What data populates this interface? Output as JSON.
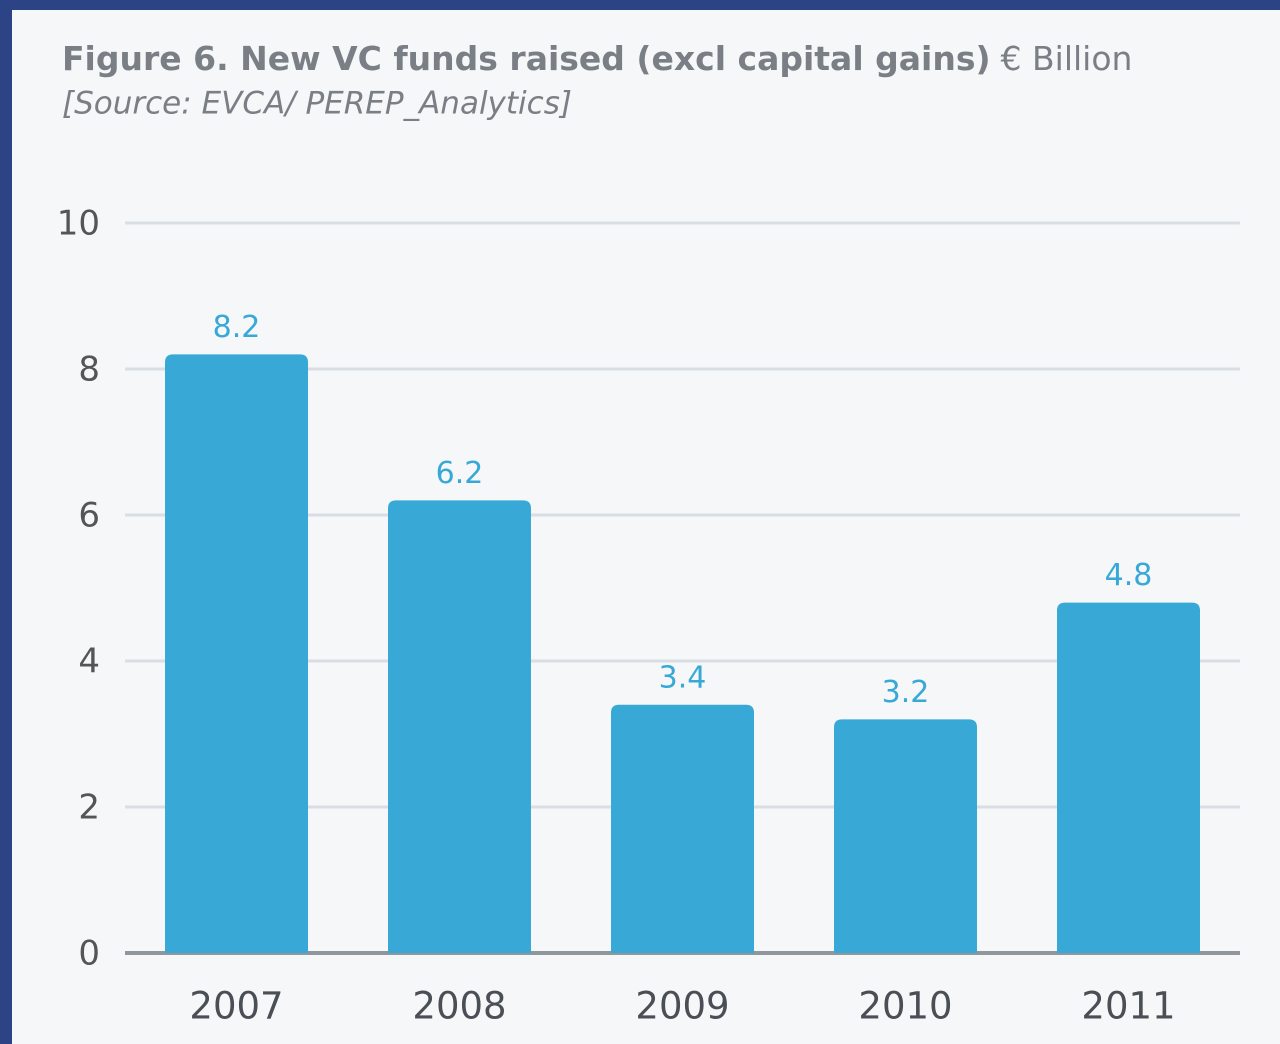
{
  "chart_data": {
    "type": "bar",
    "title": "Figure 6. New VC funds raised (excl capital gains)",
    "title_unit": "€ Billion",
    "subtitle": "[Source: EVCA/ PEREP_Analytics]",
    "categories": [
      "2007",
      "2008",
      "2009",
      "2010",
      "2011"
    ],
    "values": [
      8.2,
      6.2,
      3.4,
      3.2,
      4.8
    ],
    "color": "#38a9d6",
    "ylim": [
      0,
      10
    ],
    "yticks": [
      0,
      2,
      4,
      6,
      8,
      10
    ],
    "grid": true
  }
}
